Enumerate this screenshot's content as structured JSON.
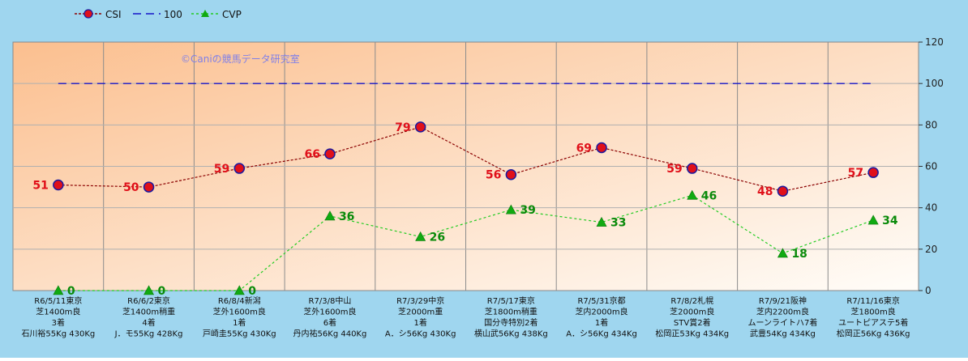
{
  "colors": {
    "background": "#9fd6ef",
    "plot_gradient_start": "#fbbf8f",
    "plot_gradient_end": "#fffdf9",
    "csi_line": "#8b0000",
    "csi_marker": "#e0101a",
    "csi_marker_edge": "#1a1aa0",
    "csi_label": "#e0101a",
    "ref_line": "#1515c8",
    "cvp_line": "#22cc22",
    "cvp_marker": "#11aa11",
    "cvp_label": "#0a8a0a",
    "watermark": "#8080e8"
  },
  "watermark": "©Caniの競馬データ研究室",
  "chart_data": {
    "type": "line",
    "y_axis_position": "right",
    "ylim": [
      0,
      120
    ],
    "yticks": [
      0,
      20,
      40,
      60,
      80,
      100,
      120
    ],
    "grid": true,
    "legend_position": "top-left",
    "categories": [
      [
        "R6/5/11東京",
        "芝1400m良",
        "3着",
        "石川裕55Kg 430Kg"
      ],
      [
        "R6/6/2東京",
        "芝1400m稍重",
        "4着",
        "J．モ55Kg 428Kg"
      ],
      [
        "R6/8/4新潟",
        "芝外1600m良",
        "1着",
        "戸崎圭55Kg 430Kg"
      ],
      [
        "R7/3/8中山",
        "芝外1600m良",
        "6着",
        "丹内祐56Kg 440Kg"
      ],
      [
        "R7/3/29中京",
        "芝2000m重",
        "1着",
        "A．シ56Kg 430Kg"
      ],
      [
        "R7/5/17東京",
        "芝1800m稍重",
        "国分寺特別2着",
        "横山武56Kg 438Kg"
      ],
      [
        "R7/5/31京都",
        "芝内2000m良",
        "1着",
        "A．シ56Kg 434Kg"
      ],
      [
        "R7/8/2札幌",
        "芝2000m良",
        "STV賞2着",
        "松岡正53Kg 434Kg"
      ],
      [
        "R7/9/21阪神",
        "芝内2200m良",
        "ムーンライトハ7着",
        "武豊54Kg 434Kg"
      ],
      [
        "R7/11/16東京",
        "芝1800m良",
        "ユートピアステ5着",
        "松岡正56Kg 436Kg"
      ]
    ],
    "series": [
      {
        "name": "CSI",
        "style": "dashed-line-circle-marker",
        "values": [
          51,
          50,
          59,
          66,
          79,
          56,
          69,
          59,
          48,
          57
        ]
      },
      {
        "name": "100",
        "style": "dashed-line",
        "values": [
          100,
          100,
          100,
          100,
          100,
          100,
          100,
          100,
          100,
          100
        ]
      },
      {
        "name": "CVP",
        "style": "dashed-line-triangle-marker",
        "values": [
          0,
          0,
          0,
          36,
          26,
          39,
          33,
          46,
          18,
          34
        ]
      }
    ]
  }
}
